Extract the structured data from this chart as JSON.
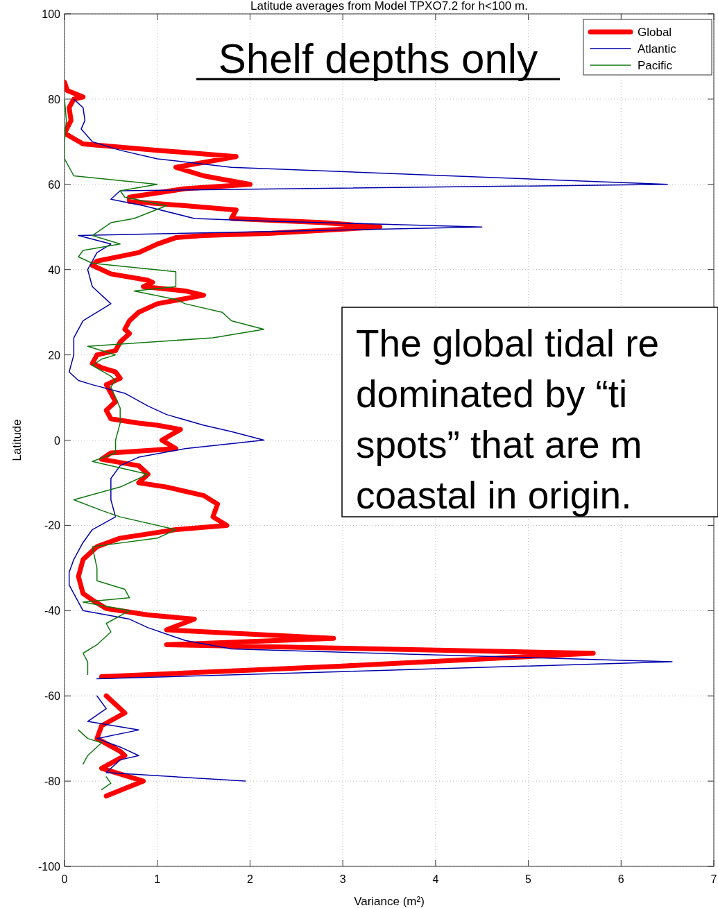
{
  "chart_data": {
    "type": "line",
    "title": "Latitude averages from Model TPXO7.2 for h<100 m.",
    "xlabel": "Variance (m²)",
    "ylabel": "Latitude",
    "annotations": [
      "Shelf depths only",
      "The global tidal re\ndominated by “ti\nspots” that are m\ncoastal in origin."
    ],
    "xlim": [
      0,
      7
    ],
    "xticks": [
      0,
      1,
      2,
      3,
      4,
      5,
      6,
      7
    ],
    "ylim": [
      -100,
      100
    ],
    "yticks": [
      -100,
      -80,
      -60,
      -40,
      -20,
      0,
      20,
      40,
      60,
      80,
      100
    ],
    "grid": true,
    "legend": "top right",
    "line_style": "solid",
    "marker": "none",
    "series": [
      {
        "name": "Global",
        "color": "#ff0000",
        "x": [
          0.0,
          0.03,
          0.2,
          0.1,
          0.05,
          0.07,
          0.0,
          0.2,
          1.0,
          1.85,
          1.2,
          1.5,
          2.0,
          1.3,
          0.7,
          0.7,
          1.3,
          1.85,
          1.8,
          2.8,
          3.4,
          2.2,
          1.5,
          1.2,
          1.0,
          0.8,
          0.35,
          0.3,
          0.5,
          0.9,
          0.95,
          0.85,
          1.3,
          1.5,
          1.0,
          0.8,
          0.7,
          0.65,
          0.7,
          0.6,
          0.55,
          0.35,
          0.3,
          0.4,
          0.55,
          0.6,
          0.45,
          0.5,
          0.55,
          0.45,
          0.5,
          0.8,
          1.0,
          1.25,
          1.05,
          1.2,
          0.5,
          0.4,
          0.8,
          0.9,
          0.8,
          1.1,
          1.5,
          1.65,
          1.6,
          1.75,
          1.2,
          0.6,
          0.35,
          0.2,
          0.15,
          0.2,
          0.3,
          0.45,
          0.9,
          1.4,
          1.1,
          2.9,
          1.1,
          5.7,
          3.0,
          0.4,
          null,
          0.45,
          0.65,
          0.4,
          0.35,
          0.6,
          0.65,
          0.4,
          0.85,
          0.45
        ],
        "values": [
          84,
          82,
          80.5,
          80,
          78,
          75,
          72,
          69.5,
          68,
          66.5,
          64,
          62,
          60,
          59,
          57,
          56,
          55,
          54,
          52,
          51,
          50,
          48.5,
          48,
          47.5,
          46,
          44,
          42,
          41,
          39,
          37.5,
          37,
          36,
          35,
          34,
          32,
          30,
          28,
          26,
          25,
          23,
          21,
          20,
          18,
          17,
          16,
          14.5,
          13,
          11,
          9,
          7,
          5,
          4,
          3.5,
          2.5,
          0,
          -2,
          -3,
          -4.5,
          -6,
          -8,
          -10,
          -11,
          -13,
          -15,
          -18,
          -20,
          -21,
          -23,
          -25,
          -28,
          -32,
          -36,
          -37.5,
          -39.5,
          -41,
          -42,
          -44.5,
          -46.5,
          -48,
          -50,
          -53,
          -55.5,
          null,
          -60,
          -64,
          -67,
          -70,
          -73,
          -74,
          -77,
          -80,
          -83.5
        ]
      },
      {
        "name": "Atlantic",
        "color": "#0000aa",
        "x": [
          0.1,
          0.2,
          0.22,
          0.18,
          0.3,
          0.6,
          1.0,
          1.8,
          6.5,
          0.6,
          0.5,
          0.85,
          1.4,
          2.0,
          4.5,
          0.15,
          0.5,
          0.35,
          0.3,
          0.25,
          0.3,
          0.5,
          0.2,
          0.1,
          0.1,
          0.05,
          0.15,
          0.3,
          0.65,
          0.9,
          1.1,
          1.5,
          1.8,
          2.15,
          1.3,
          0.8,
          0.6,
          0.5,
          0.5,
          0.55,
          0.3,
          0.2,
          0.1,
          0.05,
          0.05,
          0.2,
          0.7,
          0.9,
          1.3,
          1.8,
          6.55,
          0.35,
          null,
          0.35,
          0.45,
          0.25,
          0.8,
          0.35,
          0.6,
          0.8,
          0.6,
          0.45,
          1.95
        ],
        "values": [
          80,
          78,
          75,
          73,
          70,
          68,
          66,
          64,
          60,
          58.5,
          56.5,
          55,
          52,
          51.5,
          50,
          48,
          46,
          44,
          42,
          40,
          36,
          32,
          28,
          24,
          20,
          16,
          14,
          13,
          11,
          8,
          6,
          3.5,
          2,
          0,
          -2,
          -4,
          -6,
          -9,
          -14,
          -18,
          -21,
          -24,
          -28,
          -31,
          -34,
          -40,
          -42,
          -44,
          -47,
          -49,
          -52,
          -56,
          null,
          -60,
          -63,
          -66,
          -68,
          -70,
          -72,
          -74,
          -75,
          -78,
          -80
        ]
      },
      {
        "name": "Pacific",
        "color": "#117711",
        "x": [
          0.0,
          0.02,
          0.0,
          0.0,
          0.1,
          1.0,
          0.6,
          0.65,
          1.1,
          0.75,
          0.5,
          0.4,
          0.3,
          0.6,
          0.2,
          0.15,
          0.3,
          1.2,
          1.2,
          0.75,
          1.2,
          1.3,
          1.7,
          1.8,
          2.15,
          1.6,
          0.25,
          0.55,
          0.4,
          0.3,
          0.5,
          0.55,
          0.5,
          0.55,
          0.6,
          0.6,
          0.55,
          0.55,
          0.3,
          0.9,
          0.7,
          0.6,
          0.1,
          0.4,
          0.6,
          1.2,
          1.0,
          0.3,
          0.35,
          0.35,
          0.65,
          0.7,
          0.2,
          0.7,
          0.45,
          0.5,
          0.35,
          0.2,
          0.25,
          0.25,
          null,
          0.15,
          0.25,
          0.4,
          0.25,
          0.2,
          null,
          0.45,
          0.5,
          0.4
        ],
        "values": [
          80,
          75,
          70,
          66,
          62,
          60,
          58.5,
          57,
          55,
          52,
          51,
          49.5,
          48,
          46,
          44.5,
          43,
          41.5,
          39.5,
          36,
          35,
          33,
          32,
          30,
          28,
          26,
          24,
          22,
          20,
          19,
          17.5,
          15,
          14,
          12.5,
          10,
          7.5,
          4,
          0,
          -3,
          -5,
          -8,
          -10,
          -11,
          -14,
          -16.5,
          -18,
          -21,
          -23,
          -25,
          -30,
          -33,
          -35,
          -37,
          -38,
          -40,
          -43,
          -45,
          -48,
          -50,
          -52,
          -55,
          null,
          -68,
          -70,
          -71,
          -74,
          -76,
          null,
          -79,
          -80.5,
          -82
        ]
      }
    ]
  }
}
